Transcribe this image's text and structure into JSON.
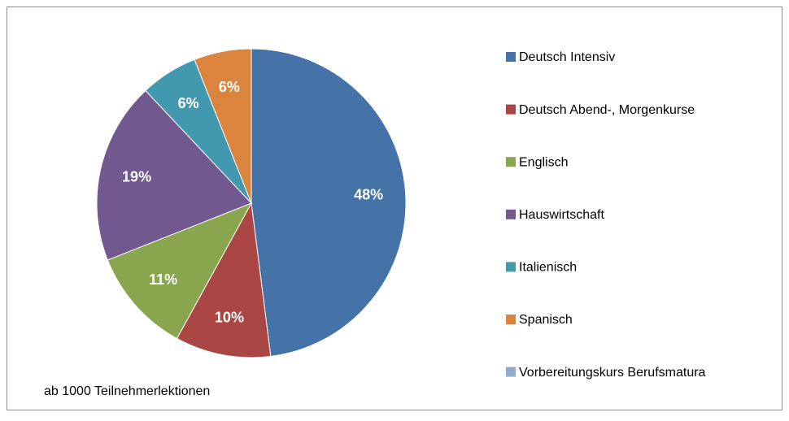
{
  "chart_data": {
    "type": "pie",
    "categories": [
      "Deutsch Intensiv",
      "Deutsch Abend-, Morgenkurse",
      "Englisch",
      "Hauswirtschaft",
      "Italienisch",
      "Spanisch",
      "Vorbereitungskurs Berufsmatura"
    ],
    "values": [
      48,
      10,
      11,
      19,
      6,
      6,
      0
    ],
    "value_labels": [
      "48%",
      "10%",
      "11%",
      "19%",
      "6%",
      "6%",
      null
    ],
    "colors": [
      "#4572a7",
      "#aa4643",
      "#89a54e",
      "#71588f",
      "#4198af",
      "#db843d",
      "#93a9cf"
    ],
    "annotation": "ab 1000 Teilnehmerlektionen",
    "legend": "right"
  }
}
